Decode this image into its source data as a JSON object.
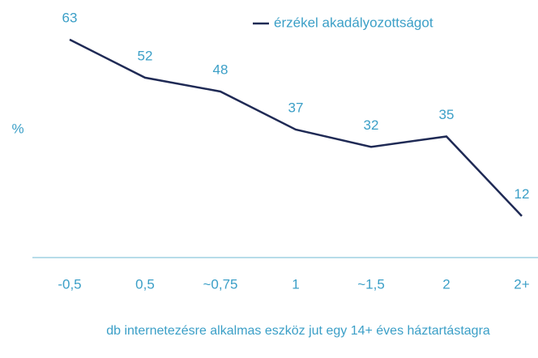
{
  "chart_data": {
    "type": "line",
    "categories": [
      "-0,5",
      "0,5",
      "~0,75",
      "1",
      "~1,5",
      "2",
      "2+"
    ],
    "series": [
      {
        "name": "érzékel akadályozottságot",
        "color": "#1f2a55",
        "values": [
          63,
          52,
          48,
          37,
          32,
          35,
          12
        ]
      }
    ],
    "ylabel": "%",
    "xlabel": "db internetezésre alkalmas eszköz jut egy 14+ éves háztartástagra",
    "ylim": [
      0,
      70
    ],
    "legend": "top",
    "label_color": "#3b9fc7"
  }
}
